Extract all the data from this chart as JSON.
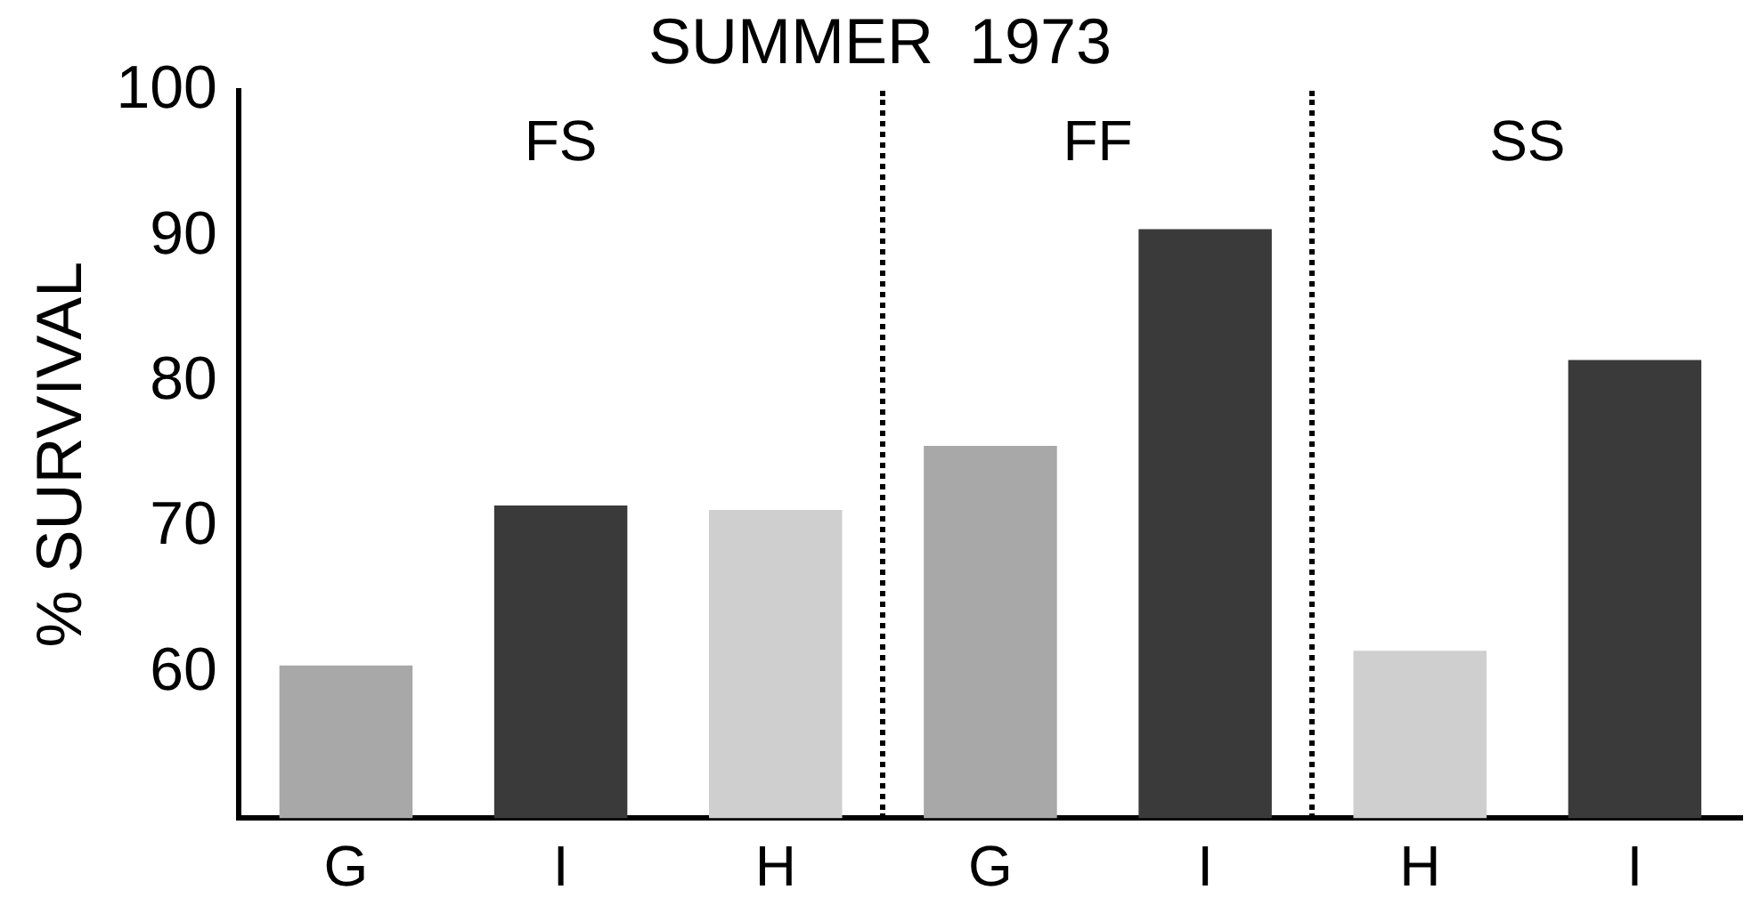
{
  "chart_data": {
    "type": "bar",
    "title": "SUMMER  1973",
    "ylabel": "% SURVIVAL",
    "categories": [
      "G",
      "I",
      "H",
      "G",
      "I",
      "H",
      "I"
    ],
    "values": [
      60.5,
      71.5,
      71.2,
      75.6,
      90.5,
      61.5,
      81.5
    ],
    "colors": [
      "#a8a8a8",
      "#3a3a3a",
      "#cfcfcf",
      "#a8a8a8",
      "#3a3a3a",
      "#cfcfcf",
      "#3a3a3a"
    ],
    "ylim": [
      50,
      100
    ],
    "yticks": [
      60,
      70,
      80,
      90,
      100
    ],
    "grid": false,
    "legend": false,
    "annotations": [
      "FS",
      "FF",
      "SS"
    ]
  }
}
